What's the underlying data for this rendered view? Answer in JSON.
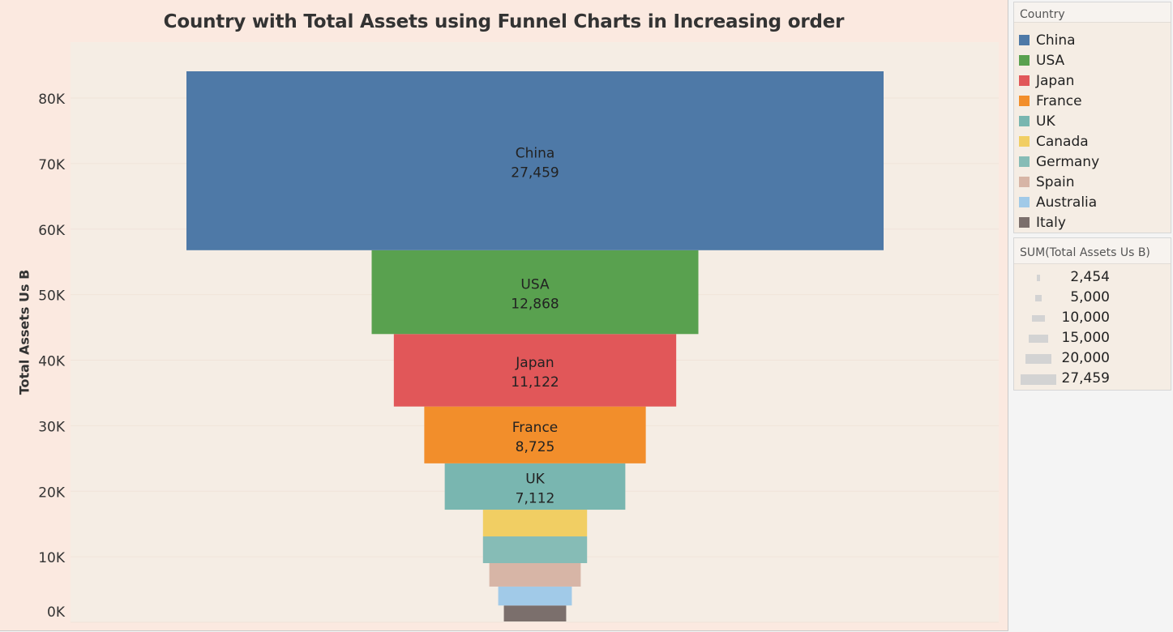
{
  "chart_data": {
    "type": "funnel",
    "title": "Country with Total Assets using Funnel Charts in Increasing order",
    "ylabel": "Total Assets Us B",
    "ylim": [
      0,
      84000
    ],
    "y_ticks": [
      0,
      10000,
      20000,
      30000,
      40000,
      50000,
      60000,
      70000,
      80000
    ],
    "y_tick_labels": [
      "0K",
      "10K",
      "20K",
      "30K",
      "40K",
      "50K",
      "60K",
      "70K",
      "80K"
    ],
    "categories": [
      "Italy",
      "Australia",
      "Spain",
      "Germany",
      "Canada",
      "UK",
      "France",
      "Japan",
      "USA",
      "China"
    ],
    "values": [
      2454,
      2900,
      3600,
      4100,
      4100,
      7112,
      8725,
      11122,
      12868,
      27459
    ],
    "value_labels": [
      "",
      "",
      "",
      "",
      "",
      "7,112",
      "8,725",
      "11,122",
      "12,868",
      "27,459"
    ],
    "colors": [
      "#7b6f6c",
      "#a1cae8",
      "#d7b5a6",
      "#86bcb6",
      "#f1ce63",
      "#79b6b0",
      "#f28e2b",
      "#e15759",
      "#59a14f",
      "#4e79a7"
    ],
    "labeled": [
      false,
      false,
      false,
      false,
      false,
      true,
      true,
      true,
      true,
      true
    ],
    "grid": false
  },
  "legend": {
    "title": "Country",
    "items": [
      {
        "label": "China",
        "color": "#4e79a7"
      },
      {
        "label": "USA",
        "color": "#59a14f"
      },
      {
        "label": "Japan",
        "color": "#e15759"
      },
      {
        "label": "France",
        "color": "#f28e2b"
      },
      {
        "label": "UK",
        "color": "#79b6b0"
      },
      {
        "label": "Canada",
        "color": "#f1ce63"
      },
      {
        "label": "Germany",
        "color": "#86bcb6"
      },
      {
        "label": "Spain",
        "color": "#d7b5a6"
      },
      {
        "label": "Australia",
        "color": "#a1cae8"
      },
      {
        "label": "Italy",
        "color": "#7b6f6c"
      }
    ]
  },
  "size_legend": {
    "title": "SUM(Total Assets Us B)",
    "items": [
      {
        "label": "2,454",
        "value": 2454
      },
      {
        "label": "5,000",
        "value": 5000
      },
      {
        "label": "10,000",
        "value": 10000
      },
      {
        "label": "15,000",
        "value": 15000
      },
      {
        "label": "20,000",
        "value": 20000
      },
      {
        "label": "27,459",
        "value": 27459
      }
    ]
  }
}
